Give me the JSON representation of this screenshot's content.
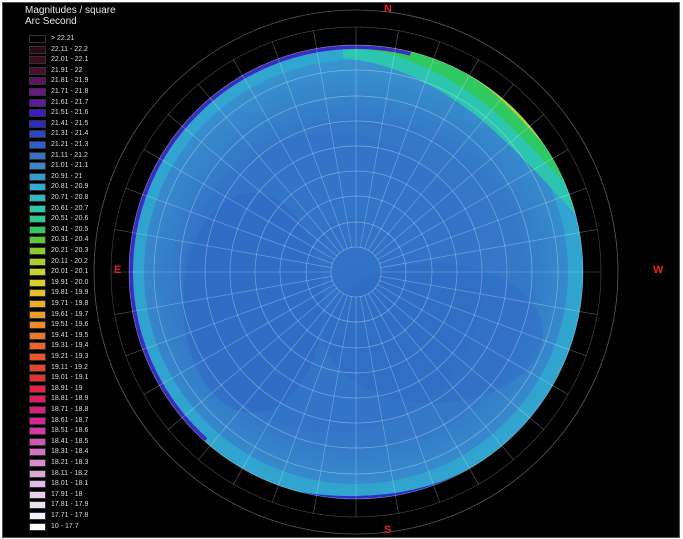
{
  "legend": {
    "title_line1": "Magnitudes / square",
    "title_line2": "Arc Second",
    "entries": [
      {
        "label": "> 22.21",
        "color": "#000000"
      },
      {
        "label": "22.11 - 22.2",
        "color": "#2a0a10"
      },
      {
        "label": "22.01 - 22.1",
        "color": "#3a0c1c"
      },
      {
        "label": "21.91 - 22",
        "color": "#4a0f2c"
      },
      {
        "label": "21.81 - 21.9",
        "color": "#5e1262"
      },
      {
        "label": "21.71 - 21.8",
        "color": "#6e158a"
      },
      {
        "label": "21.61 - 21.7",
        "color": "#5a1aa0"
      },
      {
        "label": "21.51 - 21.6",
        "color": "#3c1ec0"
      },
      {
        "label": "21.41 - 21.5",
        "color": "#2a2cc8"
      },
      {
        "label": "21.31 - 21.4",
        "color": "#2a46cc"
      },
      {
        "label": "21.21 - 21.3",
        "color": "#2e5ecc"
      },
      {
        "label": "21.11 - 21.2",
        "color": "#3272c8"
      },
      {
        "label": "21.01 - 21.1",
        "color": "#3a86cc"
      },
      {
        "label": "20.91 - 21",
        "color": "#3898d0"
      },
      {
        "label": "20.81 - 20.9",
        "color": "#30aad0"
      },
      {
        "label": "20.71 - 20.8",
        "color": "#2cbac4"
      },
      {
        "label": "20.61 - 20.7",
        "color": "#2cc6b0"
      },
      {
        "label": "20.51 - 20.6",
        "color": "#2cc890"
      },
      {
        "label": "20.41 - 20.5",
        "color": "#30c860"
      },
      {
        "label": "20.31 - 20.4",
        "color": "#5ac83a"
      },
      {
        "label": "20.21 - 20.3",
        "color": "#86cc2c"
      },
      {
        "label": "20.11 - 20.2",
        "color": "#aad02a"
      },
      {
        "label": "20.01 - 20.1",
        "color": "#c8d42a"
      },
      {
        "label": "19.91 - 20.0",
        "color": "#dcd02a"
      },
      {
        "label": "19.81 - 19.9",
        "color": "#e4c02a"
      },
      {
        "label": "19.71 - 19.8",
        "color": "#e8ae2a"
      },
      {
        "label": "19.61 - 19.7",
        "color": "#ea9c2a"
      },
      {
        "label": "19.51 - 19.6",
        "color": "#ec8a2a"
      },
      {
        "label": "19.41 - 19.5",
        "color": "#ec782a"
      },
      {
        "label": "19.31 - 19.4",
        "color": "#ec662a"
      },
      {
        "label": "19.21 - 19.3",
        "color": "#ec542a"
      },
      {
        "label": "19.11 - 19.2",
        "color": "#ea422a"
      },
      {
        "label": "19.01 - 19.1",
        "color": "#e8302e"
      },
      {
        "label": "18.91 - 19",
        "color": "#e42244"
      },
      {
        "label": "18.81 - 18.9",
        "color": "#e01c60"
      },
      {
        "label": "18.71 - 18.8",
        "color": "#dc1c7c"
      },
      {
        "label": "18.61 - 18.7",
        "color": "#d82496"
      },
      {
        "label": "18.51 - 18.6",
        "color": "#d438aa"
      },
      {
        "label": "18.41 - 18.5",
        "color": "#d454b8"
      },
      {
        "label": "18.31 - 18.4",
        "color": "#d670c4"
      },
      {
        "label": "18.21 - 18.3",
        "color": "#d88cce"
      },
      {
        "label": "18.11 - 18.2",
        "color": "#dca6d8"
      },
      {
        "label": "18.01 - 18.1",
        "color": "#e0bce2"
      },
      {
        "label": "17.91 - 18",
        "color": "#e6d0ea"
      },
      {
        "label": "17.81 - 17.9",
        "color": "#ece2f2"
      },
      {
        "label": "17.71 - 17.8",
        "color": "#f4eef8"
      },
      {
        "label": "10 - 17.7",
        "color": "#ffffff"
      }
    ]
  },
  "directions": {
    "north": "N",
    "south": "S",
    "east": "E",
    "west": "W"
  },
  "colors": {
    "direction_label": "#e0232a",
    "background": "#000000",
    "grid": "#ffffff"
  }
}
